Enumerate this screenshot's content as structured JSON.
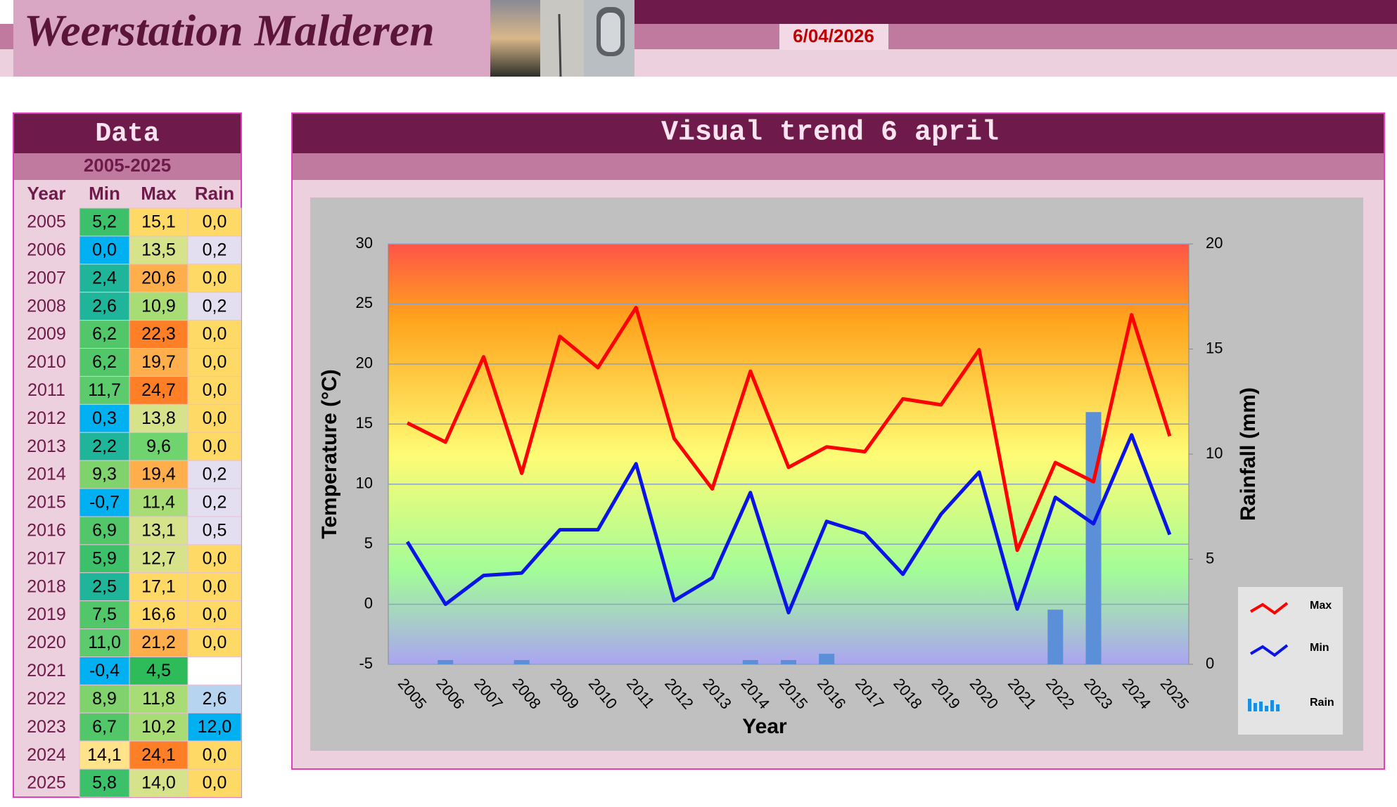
{
  "header": {
    "title": "Weerstation Malderen",
    "date": "6/04/2026"
  },
  "table": {
    "title": "Data",
    "period": "2005-2025",
    "columns": [
      "Year",
      "Min",
      "Max",
      "Rain"
    ],
    "rows": [
      [
        "2005",
        "5,2",
        "15,1",
        "0,0"
      ],
      [
        "2006",
        "0,0",
        "13,5",
        "0,2"
      ],
      [
        "2007",
        "2,4",
        "20,6",
        "0,0"
      ],
      [
        "2008",
        "2,6",
        "10,9",
        "0,2"
      ],
      [
        "2009",
        "6,2",
        "22,3",
        "0,0"
      ],
      [
        "2010",
        "6,2",
        "19,7",
        "0,0"
      ],
      [
        "2011",
        "11,7",
        "24,7",
        "0,0"
      ],
      [
        "2012",
        "0,3",
        "13,8",
        "0,0"
      ],
      [
        "2013",
        "2,2",
        "9,6",
        "0,0"
      ],
      [
        "2014",
        "9,3",
        "19,4",
        "0,2"
      ],
      [
        "2015",
        "-0,7",
        "11,4",
        "0,2"
      ],
      [
        "2016",
        "6,9",
        "13,1",
        "0,5"
      ],
      [
        "2017",
        "5,9",
        "12,7",
        "0,0"
      ],
      [
        "2018",
        "2,5",
        "17,1",
        "0,0"
      ],
      [
        "2019",
        "7,5",
        "16,6",
        "0,0"
      ],
      [
        "2020",
        "11,0",
        "21,2",
        "0,0"
      ],
      [
        "2021",
        "-0,4",
        "4,5",
        null
      ],
      [
        "2022",
        "8,9",
        "11,8",
        "2,6"
      ],
      [
        "2023",
        "6,7",
        "10,2",
        "12,0"
      ],
      [
        "2024",
        "14,1",
        "24,1",
        "0,0"
      ],
      [
        "2025",
        "5,8",
        "14,0",
        "0,0"
      ]
    ]
  },
  "chart_data": {
    "type": "line",
    "title": "Visual trend 6 april",
    "x_label": "Year",
    "y_label": "Temperature (°C)",
    "y2_label": "Rainfall (mm)",
    "categories": [
      "2005",
      "2006",
      "2007",
      "2008",
      "2009",
      "2010",
      "2011",
      "2012",
      "2013",
      "2014",
      "2015",
      "2016",
      "2017",
      "2018",
      "2019",
      "2020",
      "2021",
      "2022",
      "2023",
      "2024",
      "2025"
    ],
    "series": [
      {
        "name": "Max",
        "color": "#ff0000",
        "type": "line",
        "values": [
          15.1,
          13.5,
          20.6,
          10.9,
          22.3,
          19.7,
          24.7,
          13.8,
          9.6,
          19.4,
          11.4,
          13.1,
          12.7,
          17.1,
          16.6,
          21.2,
          4.5,
          11.8,
          10.2,
          24.1,
          14.0
        ]
      },
      {
        "name": "Min",
        "color": "#0a14e6",
        "type": "line",
        "values": [
          5.2,
          0,
          2.4,
          2.6,
          6.2,
          6.2,
          11.7,
          0.3,
          2.2,
          9.3,
          -0.7,
          6.9,
          5.9,
          2.5,
          7.5,
          11.0,
          -0.4,
          8.9,
          6.7,
          14.1,
          5.8
        ]
      },
      {
        "name": "Rain",
        "color": "#5b8fd8",
        "type": "bar",
        "axis": "y2",
        "values": [
          0,
          0.2,
          0,
          0.2,
          0,
          0,
          0,
          0,
          0,
          0.2,
          0.2,
          0.5,
          0,
          0,
          0,
          0,
          null,
          2.6,
          12.0,
          0,
          0
        ]
      }
    ],
    "ylim": [
      -5,
      30
    ],
    "yticks": [
      -5,
      0,
      5,
      10,
      15,
      20,
      25,
      30
    ],
    "y2lim": [
      0,
      20
    ],
    "y2ticks": [
      0,
      5,
      10,
      15,
      20
    ],
    "grid": true,
    "legend": "right"
  }
}
